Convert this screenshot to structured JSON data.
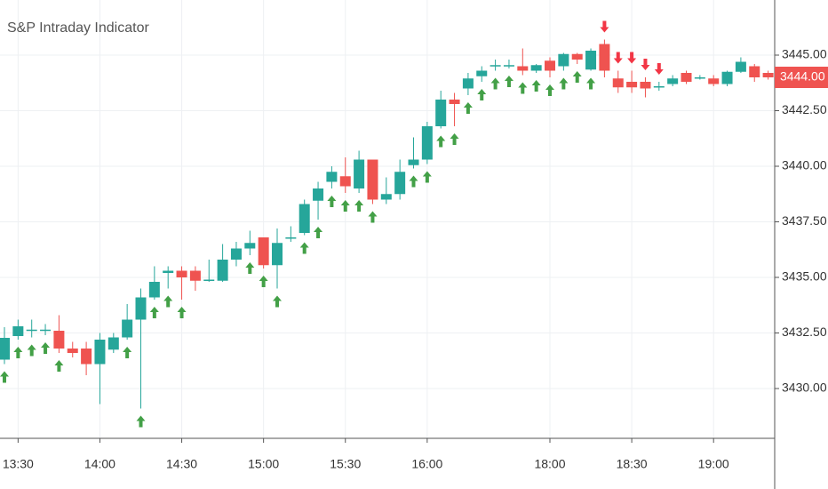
{
  "chart_data": {
    "type": "candlestick",
    "title": "S&P Intraday Indicator",
    "categories": [
      null,
      "13:30",
      null,
      null,
      null,
      null,
      null,
      "14:00",
      null,
      null,
      null,
      null,
      null,
      "14:30",
      null,
      null,
      null,
      null,
      null,
      "15:00",
      null,
      null,
      null,
      null,
      null,
      "15:30",
      null,
      null,
      null,
      null,
      null,
      "16:00",
      null,
      null,
      null,
      null,
      null,
      null,
      null,
      null,
      "18:00",
      null,
      null,
      null,
      null,
      null,
      "18:30",
      null,
      null,
      null,
      null,
      null,
      "19:00",
      null,
      null,
      null,
      null
    ],
    "open": [
      3431.3,
      3432.36,
      3432.6,
      3432.6,
      3432.6,
      3431.8,
      3431.8,
      3431.1,
      3431.75,
      3432.3,
      3433.1,
      3434.1,
      3435.2,
      3435.3,
      3435.3,
      3434.85,
      3434.85,
      3435.8,
      3436.3,
      3436.8,
      3435.55,
      3436.75,
      3437,
      3438.45,
      3439.3,
      3439.55,
      3439,
      3440.3,
      3438.5,
      3438.75,
      3440.05,
      3440.3,
      3441.8,
      3443,
      3443.5,
      3444.05,
      3444.5,
      3444.5,
      3444.5,
      3444.3,
      3444.75,
      3444.5,
      3445.05,
      3444.35,
      3445.5,
      3443.95,
      3443.8,
      3443.8,
      3443.55,
      3443.7,
      3444.2,
      3443.95,
      3443.95,
      3443.7,
      3444.25,
      3444.5,
      3444.2
    ],
    "high": [
      3432.76,
      3433.1,
      3433.1,
      3432.9,
      3433.3,
      3432.1,
      3432.1,
      3432.5,
      3432.5,
      3433.8,
      3434.5,
      3435.5,
      3435.5,
      3435.5,
      3435.5,
      3435.8,
      3436.5,
      3436.6,
      3437.1,
      3436.8,
      3437.2,
      3437.3,
      3438.5,
      3439.3,
      3440,
      3440.4,
      3440.7,
      3440.3,
      3439.5,
      3440.3,
      3441.3,
      3442,
      3443.4,
      3443.3,
      3444.2,
      3444.5,
      3444.8,
      3444.8,
      3445.3,
      3444.6,
      3444.9,
      3445.1,
      3445.1,
      3445.3,
      3445.7,
      3444.3,
      3444.3,
      3444,
      3443.8,
      3444.1,
      3444.3,
      3444.1,
      3444.1,
      3444.3,
      3444.9,
      3444.6,
      3444.3
    ],
    "low": [
      3431.1,
      3432.2,
      3432.3,
      3432.4,
      3431.6,
      3431.4,
      3430.6,
      3429.3,
      3431.6,
      3432.2,
      3429.1,
      3434,
      3434.5,
      3434,
      3434.4,
      3434.8,
      3434.8,
      3435.5,
      3436,
      3435.4,
      3434.5,
      3436.6,
      3436.9,
      3437.6,
      3439,
      3438.8,
      3438.8,
      3438.3,
      3438.3,
      3438.5,
      3439.9,
      3440.1,
      3441.7,
      3441.8,
      3443.2,
      3443.8,
      3444.3,
      3444.4,
      3444.1,
      3444.2,
      3444,
      3444.3,
      3444.6,
      3444.3,
      3444,
      3443.3,
      3443.3,
      3443.1,
      3443.4,
      3443.6,
      3443.7,
      3443.9,
      3443.6,
      3443.6,
      3444.2,
      3443.8,
      3443.9
    ],
    "close": [
      3432.28,
      3432.8,
      3432.65,
      3432.65,
      3431.8,
      3431.6,
      3431.1,
      3432.2,
      3432.3,
      3433.1,
      3434.1,
      3434.8,
      3435.3,
      3435,
      3434.85,
      3434.9,
      3435.8,
      3436.3,
      3436.55,
      3435.55,
      3436.55,
      3436.8,
      3438.3,
      3439,
      3439.75,
      3439.1,
      3440.3,
      3438.5,
      3438.75,
      3439.75,
      3440.3,
      3441.8,
      3443,
      3442.8,
      3443.95,
      3444.3,
      3444.55,
      3444.55,
      3444.3,
      3444.55,
      3444.3,
      3445.05,
      3444.8,
      3445.2,
      3444.3,
      3443.55,
      3443.55,
      3443.5,
      3443.6,
      3443.95,
      3443.8,
      3444,
      3443.7,
      3444.25,
      3444.7,
      3444,
      3444
    ],
    "signal": [
      "up",
      "up",
      "up",
      "up",
      "up",
      null,
      null,
      null,
      null,
      "up",
      "up",
      "up",
      "up",
      "up",
      null,
      null,
      null,
      null,
      "up",
      "up",
      "up",
      null,
      "up",
      "up",
      "up",
      "up",
      "up",
      "up",
      null,
      null,
      "up",
      "up",
      "up",
      "up",
      "up",
      "up",
      "up",
      "up",
      "up",
      "up",
      "up",
      "up",
      "up",
      "up",
      "down",
      "down",
      "down",
      "down",
      "down",
      null,
      null,
      null,
      null,
      null,
      null,
      null,
      null
    ],
    "up_color": "#26a69a",
    "down_color": "#ef5350",
    "buy_color": "#43a047",
    "sell_color": "#f23645",
    "ylim": [
      3427.76,
      3447.48
    ],
    "yticks": [
      {
        "value": 3430,
        "label": "3430.00"
      },
      {
        "value": 3432.5,
        "label": "3432.50"
      },
      {
        "value": 3435,
        "label": "3435.00"
      },
      {
        "value": 3437.5,
        "label": "3437.50"
      },
      {
        "value": 3440,
        "label": "3440.00"
      },
      {
        "value": 3442.5,
        "label": "3442.50"
      },
      {
        "value": 3445,
        "label": "3445.00"
      }
    ],
    "last_price": {
      "value": 3444,
      "label": "3444.00"
    },
    "grid": true
  }
}
